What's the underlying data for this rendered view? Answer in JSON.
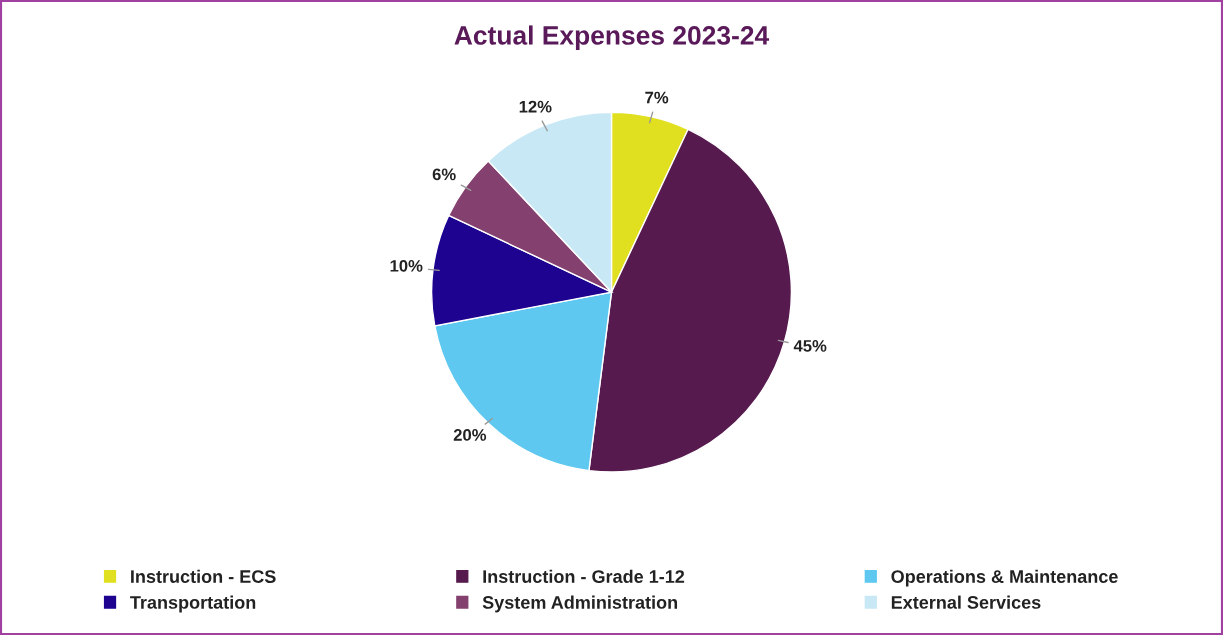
{
  "chart_data": {
    "type": "pie",
    "title": "Actual Expenses 2023-24",
    "categories": [
      "Instruction - ECS",
      "Instruction - Grade 1-12",
      "Operations & Maintenance",
      "Transportation",
      "System Administration",
      "External Services"
    ],
    "values": [
      7,
      45,
      20,
      10,
      6,
      12
    ],
    "colors": [
      "#e0e020",
      "#561a4e",
      "#5ec8f0",
      "#1e0390",
      "#84406e",
      "#c8e8f5"
    ],
    "value_labels": [
      "7%",
      "45%",
      "20%",
      "10%",
      "6%",
      "12%"
    ],
    "legend": "bottom"
  }
}
